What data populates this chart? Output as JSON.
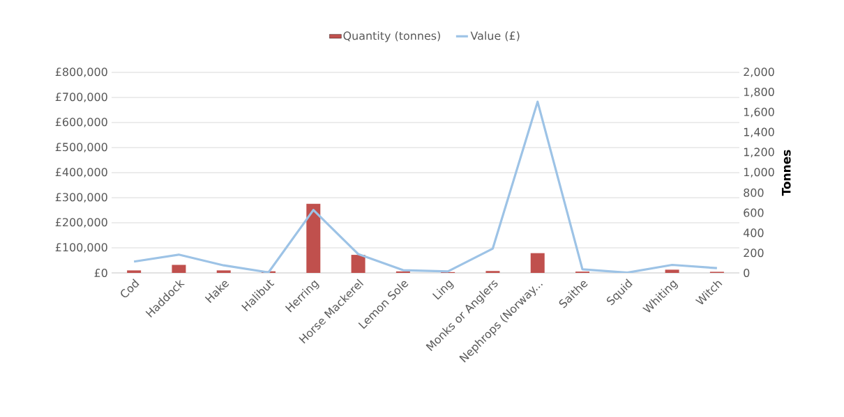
{
  "chart_data": {
    "type": "bar",
    "categories": [
      "Cod",
      "Haddock",
      "Hake",
      "Halibut",
      "Herring",
      "Horse Mackerel",
      "Lemon Sole",
      "Ling",
      "Monks or Anglers",
      "Nephrops (Norway...",
      "Saithe",
      "Squid",
      "Whiting",
      "Witch"
    ],
    "series": [
      {
        "name": "Quantity (tonnes)",
        "axis": "y2",
        "color": "#c0504d",
        "values": [
          25,
          80,
          25,
          16,
          690,
          180,
          15,
          8,
          19,
          197,
          13,
          0,
          32,
          11
        ]
      },
      {
        "name": "Value (£)",
        "type": "line",
        "color": "#9dc3e6",
        "values": [
          45000,
          73000,
          30000,
          2000,
          251000,
          75000,
          11000,
          6000,
          97000,
          683000,
          14000,
          1000,
          32000,
          19000
        ]
      }
    ],
    "ylim": [
      0,
      800000
    ],
    "yticks": [
      {
        "value": 0,
        "label": "£0"
      },
      {
        "value": 100000,
        "label": "£100,000"
      },
      {
        "value": 200000,
        "label": "£200,000"
      },
      {
        "value": 300000,
        "label": "£300,000"
      },
      {
        "value": 400000,
        "label": "£400,000"
      },
      {
        "value": 500000,
        "label": "£500,000"
      },
      {
        "value": 600000,
        "label": "£600,000"
      },
      {
        "value": 700000,
        "label": "£700,000"
      },
      {
        "value": 800000,
        "label": "£800,000"
      }
    ],
    "y2lim": [
      0,
      2000
    ],
    "y2ticks": [
      0,
      200,
      400,
      600,
      800,
      {
        "value": 1000,
        "label": "1,000"
      },
      {
        "value": 1200,
        "label": "1,200"
      },
      {
        "value": 1400,
        "label": "1,400"
      },
      {
        "value": 1600,
        "label": "1,600"
      },
      {
        "value": 1800,
        "label": "1,800"
      },
      {
        "value": 2000,
        "label": "2,000"
      }
    ],
    "y2label": "Tonnes",
    "grid": "y",
    "legend": "top"
  }
}
